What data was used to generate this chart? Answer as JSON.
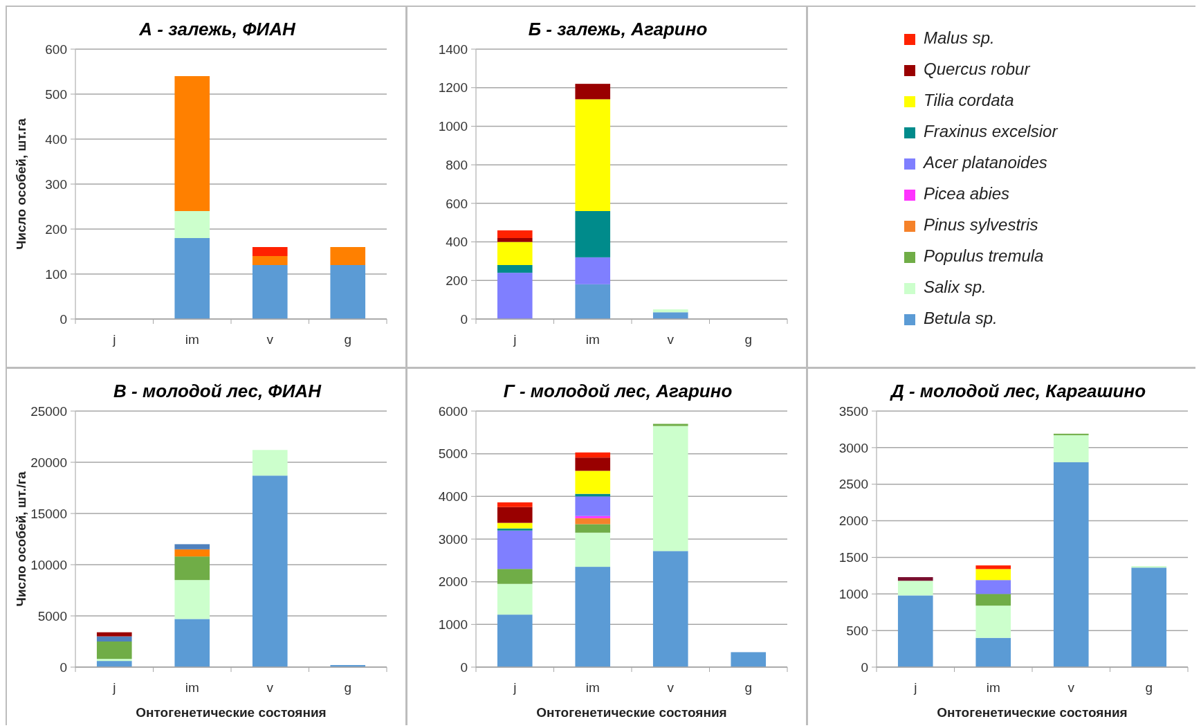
{
  "chart_data": [
    {
      "type": "bar",
      "stacked": true,
      "title": "А - залежь, ФИАН",
      "ylabel": "Число особей, шт.га",
      "categories": [
        "j",
        "im",
        "v",
        "g"
      ],
      "ylim": [
        0,
        600
      ],
      "yticks": [
        0,
        100,
        200,
        300,
        400,
        500,
        600
      ],
      "grid": "y",
      "series": [
        {
          "color": "#5b9bd5",
          "values": [
            null,
            180,
            120,
            120
          ]
        },
        {
          "color": "#ccffcc",
          "values": [
            null,
            60,
            null,
            null
          ]
        },
        {
          "color": "#ff8000",
          "values": [
            null,
            300,
            20,
            40
          ]
        },
        {
          "color": "#ff2200",
          "values": [
            null,
            null,
            20,
            null
          ]
        }
      ]
    },
    {
      "type": "bar",
      "stacked": true,
      "title": "Б - залежь, Агарино",
      "categories": [
        "j",
        "im",
        "v",
        "g"
      ],
      "ylim": [
        0,
        1400
      ],
      "yticks": [
        0,
        200,
        400,
        600,
        800,
        1000,
        1200,
        1400
      ],
      "grid": "y",
      "legend": "right",
      "series": [
        {
          "name": "Betula sp.",
          "color": "#5b9bd5",
          "values": [
            null,
            180,
            35,
            null
          ]
        },
        {
          "name": "Salix sp.",
          "color": "#ccffcc",
          "values": [
            null,
            null,
            15,
            null
          ]
        },
        {
          "name": "Populus tremula",
          "color": "#70ad47",
          "values": [
            null,
            null,
            null,
            null
          ]
        },
        {
          "name": "Pinus sylvestris",
          "color": "#f5822a",
          "values": [
            null,
            null,
            null,
            null
          ]
        },
        {
          "name": "Picea abies",
          "color": "#ff33ff",
          "values": [
            null,
            null,
            null,
            null
          ]
        },
        {
          "name": "Acer platanoides",
          "color": "#7f7fff",
          "values": [
            240,
            140,
            null,
            null
          ]
        },
        {
          "name": "Fraxinus excelsior",
          "color": "#008b8b",
          "values": [
            40,
            240,
            null,
            null
          ]
        },
        {
          "name": "Tilia cordata",
          "color": "#ffff00",
          "values": [
            120,
            580,
            null,
            null
          ]
        },
        {
          "name": "Quercus robur",
          "color": "#990000",
          "values": [
            20,
            80,
            null,
            null
          ]
        },
        {
          "name": "Malus sp.",
          "color": "#ff2200",
          "values": [
            40,
            null,
            null,
            null
          ]
        }
      ]
    },
    {
      "type": "bar",
      "stacked": true,
      "title": "В - молодой лес, ФИАН",
      "ylabel": "Число особей, шт./га",
      "xlabel": "Онтогенетические состояния",
      "categories": [
        "j",
        "im",
        "v",
        "g"
      ],
      "ylim": [
        0,
        25000
      ],
      "yticks": [
        0,
        5000,
        10000,
        15000,
        20000,
        25000
      ],
      "grid": "y",
      "series": [
        {
          "color": "#5b9bd5",
          "values": [
            600,
            4700,
            18700,
            200
          ]
        },
        {
          "color": "#ccffcc",
          "values": [
            200,
            3800,
            2500,
            null
          ]
        },
        {
          "color": "#70ad47",
          "values": [
            1700,
            2300,
            null,
            null
          ]
        },
        {
          "color": "#ff8000",
          "values": [
            null,
            700,
            null,
            null
          ]
        },
        {
          "color": "#4f81bd",
          "values": [
            500,
            500,
            null,
            null
          ]
        },
        {
          "color": "#990000",
          "values": [
            400,
            null,
            null,
            null
          ]
        }
      ]
    },
    {
      "type": "bar",
      "stacked": true,
      "title": "Г - молодой лес, Агарино",
      "xlabel": "Онтогенетические состояния",
      "categories": [
        "j",
        "im",
        "v",
        "g"
      ],
      "ylim": [
        0,
        6000
      ],
      "yticks": [
        0,
        1000,
        2000,
        3000,
        4000,
        5000,
        6000
      ],
      "grid": "y",
      "series": [
        {
          "color": "#5b9bd5",
          "values": [
            1230,
            2350,
            2720,
            350
          ]
        },
        {
          "color": "#ccffcc",
          "values": [
            720,
            800,
            2930,
            null
          ]
        },
        {
          "color": "#70ad47",
          "values": [
            350,
            200,
            50,
            null
          ]
        },
        {
          "color": "#f5822a",
          "values": [
            null,
            140,
            null,
            null
          ]
        },
        {
          "color": "#ff33ff",
          "values": [
            null,
            50,
            null,
            null
          ]
        },
        {
          "color": "#7f7fff",
          "values": [
            900,
            460,
            null,
            null
          ]
        },
        {
          "color": "#008b8b",
          "values": [
            50,
            60,
            null,
            null
          ]
        },
        {
          "color": "#ffff00",
          "values": [
            130,
            540,
            null,
            null
          ]
        },
        {
          "color": "#990000",
          "values": [
            370,
            310,
            null,
            null
          ]
        },
        {
          "color": "#ff2200",
          "values": [
            110,
            120,
            null,
            null
          ]
        }
      ]
    },
    {
      "type": "bar",
      "stacked": true,
      "title": "Д - молодой лес, Каргашино",
      "xlabel": "Онтогенетические состояния",
      "categories": [
        "j",
        "im",
        "v",
        "g"
      ],
      "ylim": [
        0,
        3500
      ],
      "yticks": [
        0,
        500,
        1000,
        1500,
        2000,
        2500,
        3000,
        3500
      ],
      "grid": "y",
      "series": [
        {
          "color": "#5b9bd5",
          "values": [
            980,
            400,
            2800,
            1360
          ]
        },
        {
          "color": "#ccffcc",
          "values": [
            200,
            440,
            370,
            20
          ]
        },
        {
          "color": "#70ad47",
          "values": [
            null,
            160,
            20,
            null
          ]
        },
        {
          "color": "#7f7fff",
          "values": [
            null,
            190,
            null,
            null
          ]
        },
        {
          "color": "#ffff00",
          "values": [
            null,
            150,
            null,
            null
          ]
        },
        {
          "color": "#7a1030",
          "values": [
            50,
            null,
            null,
            null
          ]
        },
        {
          "color": "#ff2200",
          "values": [
            null,
            50,
            null,
            null
          ]
        }
      ]
    }
  ]
}
